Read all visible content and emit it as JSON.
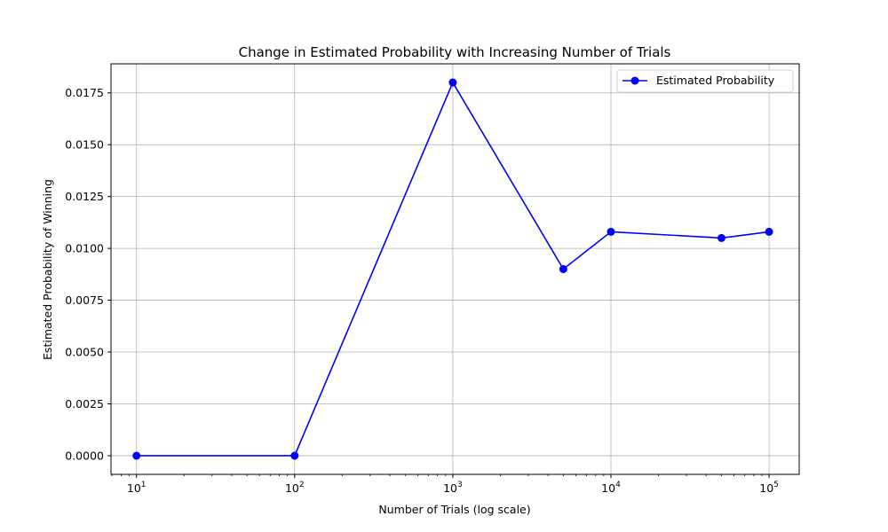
{
  "chart_data": {
    "type": "line",
    "title": "Change in Estimated Probability with Increasing Number of Trials",
    "xlabel": "Number of Trials (log scale)",
    "ylabel": "Estimated Probability of Winning",
    "xscale": "log",
    "xlim": [
      6.9,
      155000
    ],
    "ylim": [
      -0.0009,
      0.0189
    ],
    "xticks": [
      {
        "value": 10,
        "base": "10",
        "exp": "1"
      },
      {
        "value": 100,
        "base": "10",
        "exp": "2"
      },
      {
        "value": 1000,
        "base": "10",
        "exp": "3"
      },
      {
        "value": 10000,
        "base": "10",
        "exp": "4"
      },
      {
        "value": 100000,
        "base": "10",
        "exp": "5"
      }
    ],
    "yticks": [
      {
        "value": 0.0,
        "label": "0.0000"
      },
      {
        "value": 0.0025,
        "label": "0.0025"
      },
      {
        "value": 0.005,
        "label": "0.0050"
      },
      {
        "value": 0.0075,
        "label": "0.0075"
      },
      {
        "value": 0.01,
        "label": "0.0100"
      },
      {
        "value": 0.0125,
        "label": "0.0125"
      },
      {
        "value": 0.015,
        "label": "0.0150"
      },
      {
        "value": 0.0175,
        "label": "0.0175"
      }
    ],
    "grid": true,
    "legend_position": "top-right",
    "series": [
      {
        "name": "Estimated Probability",
        "color": "#0000ff",
        "marker": "circle",
        "x": [
          10,
          100,
          1000,
          5000,
          10000,
          50000,
          100000
        ],
        "y": [
          0.0,
          0.0,
          0.018,
          0.009,
          0.0108,
          0.0105,
          0.0108
        ]
      }
    ]
  }
}
